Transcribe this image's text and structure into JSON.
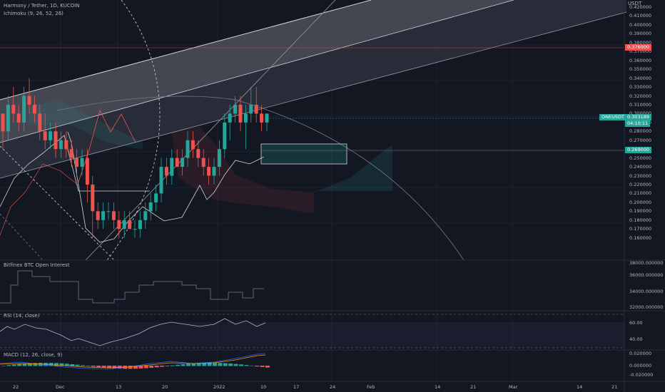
{
  "header": {
    "symbol_line": "Harmony / Tether, 1D, KUCOIN",
    "indicator_line": "Ichimoku (9, 26, 52, 26)",
    "currency": "USDT"
  },
  "panes": {
    "open_interest_title": "Bitfinex BTC Open Interest",
    "rsi_title": "RSI (14, close)",
    "macd_title": "MACD (12, 26, close, 9)"
  },
  "price_axis": [
    "0.420000",
    "0.410000",
    "0.400000",
    "0.390000",
    "0.380000",
    "0.370000",
    "0.360000",
    "0.350000",
    "0.340000",
    "0.330000",
    "0.320000",
    "0.310000",
    "0.300000",
    "0.290000",
    "0.280000",
    "0.270000",
    "0.260000",
    "0.250000",
    "0.240000",
    "0.230000",
    "0.220000",
    "0.210000",
    "0.200000",
    "0.190000",
    "0.180000",
    "0.170000",
    "0.160000"
  ],
  "price_badges": {
    "red_level": "0.376000",
    "symbol_tag": "ONEUSDT",
    "last_price": "0.303189",
    "countdown": "04:10:11",
    "zone_level": "0.269000"
  },
  "oi_axis": [
    "38000.000000",
    "36000.000000",
    "34000.000000",
    "32000.000000"
  ],
  "rsi_axis": [
    "60.00",
    "40.00"
  ],
  "macd_axis": [
    "0.020000",
    "0.000000",
    "-0.020000"
  ],
  "time_axis": [
    "22",
    "Dec",
    "13",
    "20",
    "2022",
    "10",
    "17",
    "24",
    "Feb",
    "14",
    "21",
    "Mar",
    "14",
    "21"
  ],
  "colors": {
    "up": "#26a69a",
    "down": "#ef5350",
    "background": "#131722",
    "accent": "#2962ff"
  },
  "chart_data": {
    "type": "candlestick",
    "ohlc": [
      [
        0.3,
        0.3,
        0.26,
        0.28
      ],
      [
        0.28,
        0.32,
        0.27,
        0.31
      ],
      [
        0.31,
        0.33,
        0.29,
        0.3
      ],
      [
        0.3,
        0.31,
        0.28,
        0.29
      ],
      [
        0.29,
        0.33,
        0.28,
        0.32
      ],
      [
        0.32,
        0.34,
        0.3,
        0.31
      ],
      [
        0.31,
        0.32,
        0.29,
        0.3
      ],
      [
        0.3,
        0.31,
        0.27,
        0.28
      ],
      [
        0.28,
        0.3,
        0.26,
        0.27
      ],
      [
        0.27,
        0.29,
        0.26,
        0.28
      ],
      [
        0.28,
        0.29,
        0.25,
        0.26
      ],
      [
        0.26,
        0.28,
        0.25,
        0.27
      ],
      [
        0.27,
        0.28,
        0.25,
        0.26
      ],
      [
        0.26,
        0.27,
        0.24,
        0.25
      ],
      [
        0.25,
        0.26,
        0.23,
        0.24
      ],
      [
        0.24,
        0.26,
        0.23,
        0.25
      ],
      [
        0.25,
        0.26,
        0.2,
        0.22
      ],
      [
        0.22,
        0.23,
        0.16,
        0.19
      ],
      [
        0.19,
        0.2,
        0.17,
        0.18
      ],
      [
        0.18,
        0.2,
        0.17,
        0.19
      ],
      [
        0.19,
        0.2,
        0.18,
        0.19
      ],
      [
        0.19,
        0.2,
        0.17,
        0.18
      ],
      [
        0.18,
        0.19,
        0.16,
        0.17
      ],
      [
        0.17,
        0.19,
        0.16,
        0.18
      ],
      [
        0.18,
        0.19,
        0.17,
        0.17
      ],
      [
        0.17,
        0.18,
        0.16,
        0.17
      ],
      [
        0.17,
        0.19,
        0.16,
        0.18
      ],
      [
        0.18,
        0.2,
        0.17,
        0.19
      ],
      [
        0.19,
        0.21,
        0.18,
        0.2
      ],
      [
        0.2,
        0.22,
        0.19,
        0.21
      ],
      [
        0.21,
        0.25,
        0.2,
        0.24
      ],
      [
        0.24,
        0.25,
        0.22,
        0.23
      ],
      [
        0.23,
        0.26,
        0.22,
        0.25
      ],
      [
        0.25,
        0.26,
        0.24,
        0.24
      ],
      [
        0.24,
        0.26,
        0.23,
        0.25
      ],
      [
        0.25,
        0.28,
        0.24,
        0.27
      ],
      [
        0.27,
        0.28,
        0.25,
        0.26
      ],
      [
        0.26,
        0.27,
        0.24,
        0.25
      ],
      [
        0.25,
        0.26,
        0.23,
        0.24
      ],
      [
        0.24,
        0.25,
        0.22,
        0.23
      ],
      [
        0.23,
        0.25,
        0.22,
        0.24
      ],
      [
        0.24,
        0.27,
        0.23,
        0.26
      ],
      [
        0.26,
        0.3,
        0.25,
        0.29
      ],
      [
        0.29,
        0.31,
        0.27,
        0.3
      ],
      [
        0.3,
        0.32,
        0.29,
        0.31
      ],
      [
        0.31,
        0.32,
        0.28,
        0.29
      ],
      [
        0.29,
        0.31,
        0.26,
        0.3
      ],
      [
        0.3,
        0.33,
        0.29,
        0.31
      ],
      [
        0.31,
        0.33,
        0.29,
        0.3
      ],
      [
        0.3,
        0.31,
        0.28,
        0.29
      ],
      [
        0.29,
        0.3,
        0.28,
        0.3
      ]
    ]
  }
}
